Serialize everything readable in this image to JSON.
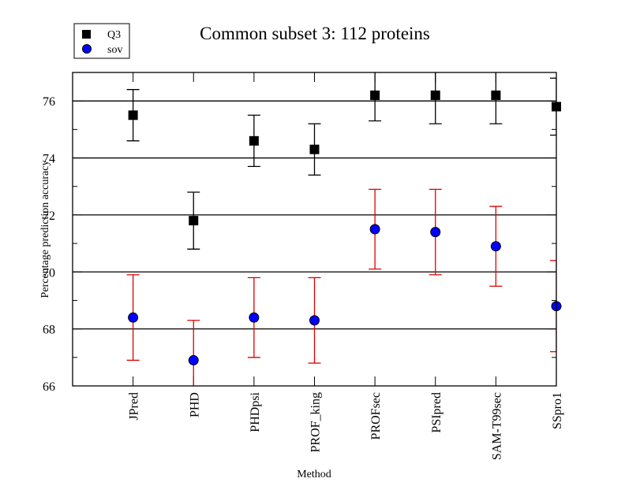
{
  "chart_data": {
    "type": "scatter",
    "title": "Common subset 3: 112 proteins",
    "xlabel": "Method",
    "ylabel": "Percentage prediction accuracy",
    "categories": [
      "JPred",
      "PHD",
      "PHDpsi",
      "PROF_king",
      "PROFsec",
      "PSIpred",
      "SAM-T99sec",
      "SSpro1"
    ],
    "x": [
      1,
      2,
      3,
      4,
      5,
      6,
      7,
      8
    ],
    "xlim": [
      0,
      8
    ],
    "ylim": [
      66,
      77
    ],
    "yticks": [
      66,
      68,
      70,
      72,
      74,
      76
    ],
    "yticks_minor": [
      67,
      69,
      71,
      73,
      75,
      77
    ],
    "grid": "horizontal at major y ticks",
    "legend_position": "top-left (outside plot)",
    "series": [
      {
        "name": "Q3",
        "marker": "square",
        "color": "#000000",
        "errorbar_color": "#000000",
        "values": [
          75.5,
          71.8,
          74.6,
          74.3,
          76.2,
          76.2,
          76.2,
          75.8
        ],
        "errors": [
          0.9,
          1.0,
          0.9,
          0.9,
          0.9,
          1.0,
          1.0,
          1.0
        ]
      },
      {
        "name": "sov",
        "marker": "circle",
        "color": "#0000ff",
        "errorbar_color": "#dd0000",
        "values": [
          68.4,
          66.9,
          68.4,
          68.3,
          71.5,
          71.4,
          70.9,
          68.8
        ],
        "errors": [
          1.5,
          1.4,
          1.4,
          1.5,
          1.4,
          1.5,
          1.4,
          1.6
        ]
      }
    ]
  }
}
